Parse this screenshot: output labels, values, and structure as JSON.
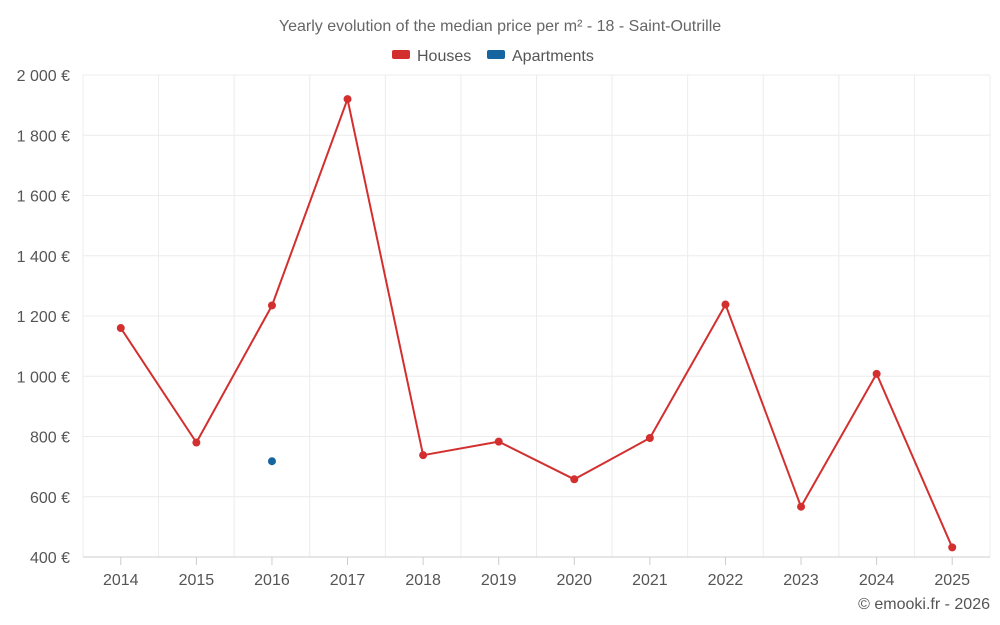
{
  "chart_data": {
    "type": "line",
    "title": "Yearly evolution of the median price per m² - 18 - Saint-Outrille",
    "categories": [
      "2014",
      "2015",
      "2016",
      "2017",
      "2018",
      "2019",
      "2020",
      "2021",
      "2022",
      "2023",
      "2024",
      "2025"
    ],
    "y_tick_labels": [
      "2 000 €",
      "1 800 €",
      "1 600 €",
      "1 400 €",
      "1 200 €",
      "1 000 €",
      "800 €",
      "600 €",
      "400 €"
    ],
    "ylim": [
      400,
      2000
    ],
    "grid": true,
    "legend_position": "top-center",
    "series": [
      {
        "name": "Houses",
        "color": "#d32f2f",
        "values": [
          1160,
          780,
          1235,
          1920,
          738,
          783,
          658,
          795,
          1238,
          567,
          1008,
          432
        ]
      },
      {
        "name": "Apartments",
        "color": "#1565a0",
        "values": [
          null,
          null,
          718,
          null,
          null,
          null,
          null,
          null,
          null,
          null,
          null,
          null
        ]
      }
    ],
    "credit": "© emooki.fr - 2026"
  }
}
